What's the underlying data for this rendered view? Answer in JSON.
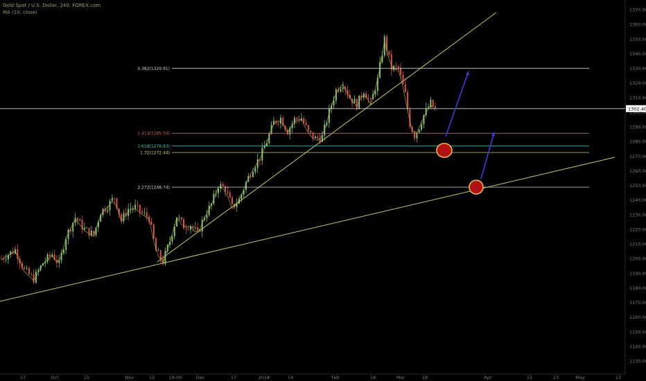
{
  "chart_data": {
    "type": "candlestick",
    "title": "Gold Spot / U.S. Dollar, 240, FOREX.com",
    "indicator": "MA (10, close)",
    "price_label": "1302.40",
    "y_range": [
      1125,
      1375
    ],
    "y_ticks": [
      1130,
      1140,
      1150,
      1160,
      1170,
      1180,
      1190,
      1200,
      1210,
      1220,
      1230,
      1240,
      1250,
      1260,
      1270,
      1280,
      1290,
      1300,
      1310,
      1320,
      1330,
      1340,
      1350,
      1360,
      1370
    ],
    "y_tick_labels": [
      "1130.00",
      "1140.00",
      "1150.00",
      "1160.00",
      "1170.00",
      "1180.00",
      "1190.00",
      "1200.00",
      "1210.00",
      "1220.00",
      "1230.00",
      "1240.00",
      "1250.00",
      "1260.00",
      "1270.00",
      "1280.00",
      "1290.00",
      "1300.00",
      "1310.00",
      "1320.00",
      "1330.00",
      "1340.00",
      "1350.00",
      "1360.00",
      "1370.00"
    ],
    "x_ticks": [
      "17",
      "Oct",
      "15",
      "Nov",
      "12",
      "19:00",
      "Dec",
      "17",
      "2018",
      "14",
      "Feb",
      "18",
      "Mar",
      "18",
      "Apr",
      "15",
      "23",
      "May",
      "13"
    ],
    "fib_levels": [
      {
        "label": "0.382(1329.91)",
        "value": 1329.91,
        "color": "#cfcfcf"
      },
      {
        "label": "1.414(1285.59)",
        "value": 1285.59,
        "color": "#c26a6a"
      },
      {
        "label": "1.618(1276.83)",
        "value": 1276.83,
        "color": "#2fc9b5"
      },
      {
        "label": "1.72(1272.44)",
        "value": 1272.44,
        "color": "#c8d24a"
      },
      {
        "label": "2.272(1248.74)",
        "value": 1248.74,
        "color": "#cfcfcf"
      }
    ],
    "current_price": 1302.4,
    "price_path": [
      [
        0,
        1200
      ],
      [
        6,
        1206
      ],
      [
        10,
        1192
      ],
      [
        14,
        1186
      ],
      [
        18,
        1197
      ],
      [
        22,
        1203
      ],
      [
        25,
        1196
      ],
      [
        28,
        1215
      ],
      [
        32,
        1228
      ],
      [
        36,
        1220
      ],
      [
        40,
        1216
      ],
      [
        43,
        1232
      ],
      [
        46,
        1236
      ],
      [
        49,
        1242
      ],
      [
        52,
        1226
      ],
      [
        55,
        1234
      ],
      [
        58,
        1235
      ],
      [
        61,
        1231
      ],
      [
        64,
        1228
      ],
      [
        67,
        1205
      ],
      [
        70,
        1198
      ],
      [
        73,
        1212
      ],
      [
        76,
        1229
      ],
      [
        79,
        1222
      ],
      [
        82,
        1223
      ],
      [
        85,
        1217
      ],
      [
        88,
        1229
      ],
      [
        91,
        1237
      ],
      [
        94,
        1250
      ],
      [
        97,
        1248
      ],
      [
        100,
        1235
      ],
      [
        103,
        1240
      ],
      [
        106,
        1252
      ],
      [
        109,
        1262
      ],
      [
        112,
        1269
      ],
      [
        115,
        1280
      ],
      [
        118,
        1293
      ],
      [
        121,
        1296
      ],
      [
        124,
        1287
      ],
      [
        127,
        1295
      ],
      [
        130,
        1296
      ],
      [
        133,
        1286
      ],
      [
        136,
        1282
      ],
      [
        139,
        1283
      ],
      [
        142,
        1300
      ],
      [
        145,
        1315
      ],
      [
        148,
        1320
      ],
      [
        151,
        1310
      ],
      [
        154,
        1305
      ],
      [
        157,
        1315
      ],
      [
        160,
        1306
      ],
      [
        163,
        1322
      ],
      [
        166,
        1350
      ],
      [
        169,
        1330
      ],
      [
        172,
        1330
      ],
      [
        175,
        1312
      ],
      [
        177,
        1292
      ],
      [
        179,
        1284
      ],
      [
        181,
        1290
      ],
      [
        183,
        1298
      ],
      [
        186,
        1306
      ],
      [
        188,
        1302
      ]
    ]
  }
}
